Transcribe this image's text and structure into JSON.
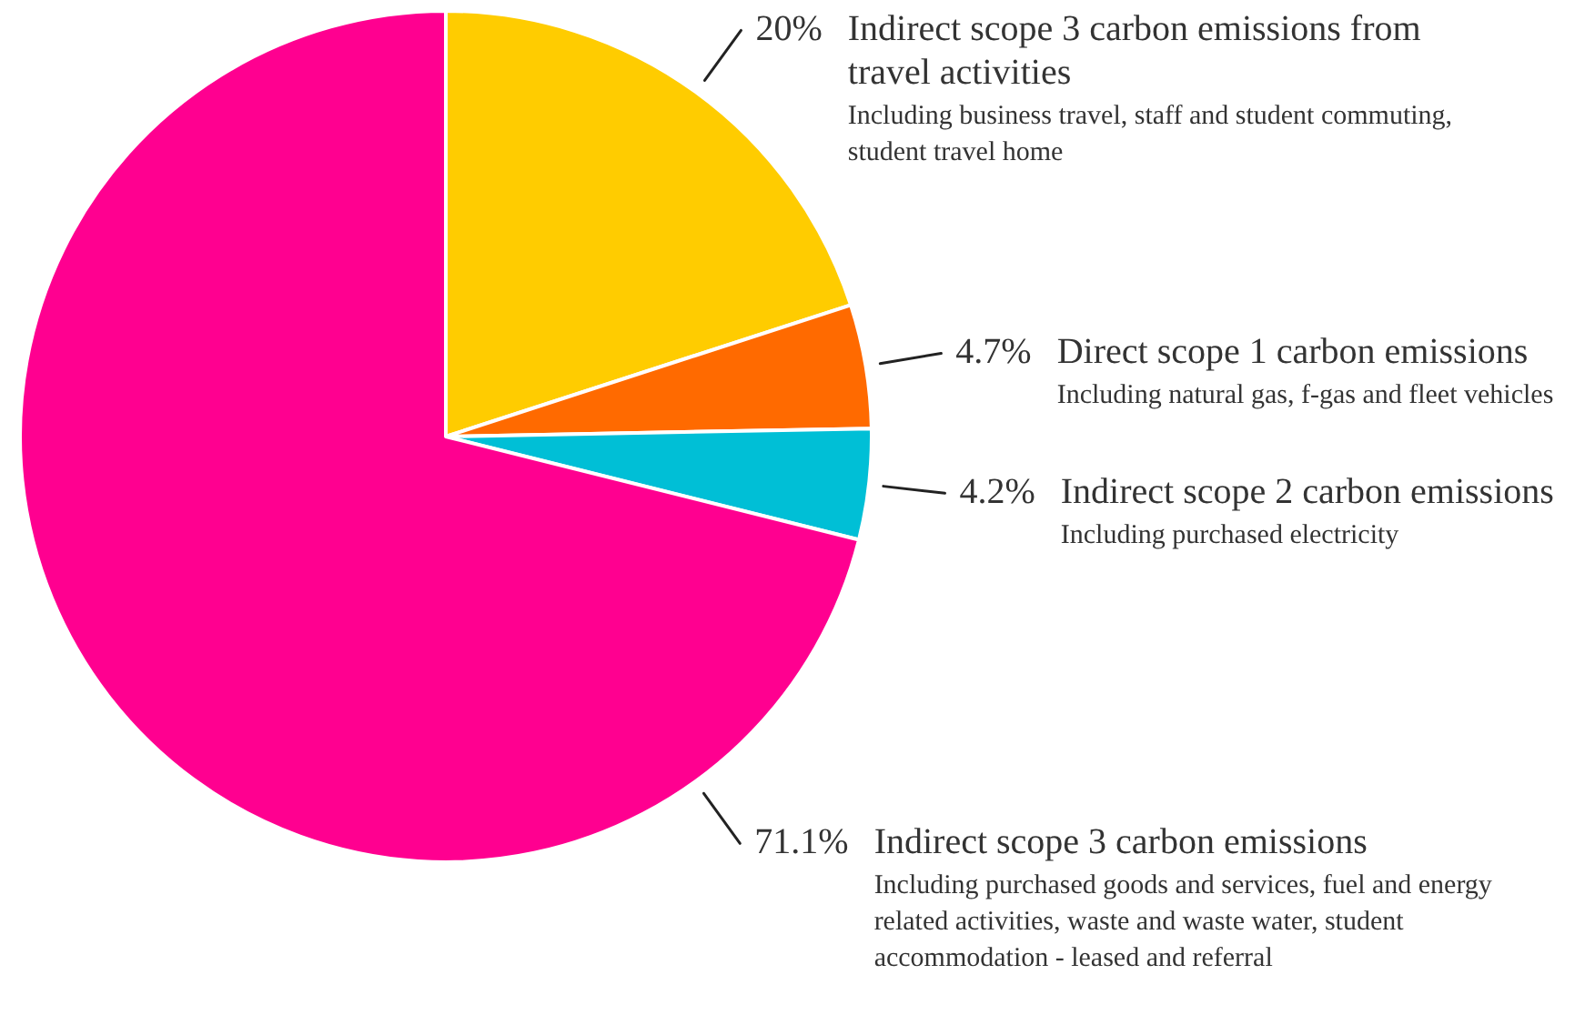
{
  "chart_data": {
    "type": "pie",
    "categories": [
      "Indirect scope 3 carbon emissions from travel activities",
      "Direct scope 1 carbon emissions",
      "Indirect scope 2 carbon emissions",
      "Indirect scope 3 carbon emissions"
    ],
    "values": [
      20,
      4.7,
      4.2,
      71.1
    ],
    "colors": [
      "#ffcc00",
      "#ff6a00",
      "#00bfd6",
      "#ff0090"
    ],
    "value_labels": [
      "20%",
      "4.7%",
      "4.2%",
      "71.1%"
    ],
    "annotations": [
      "Including business travel, staff and student commuting, student travel home",
      "Including natural gas, f-gas and fleet vehicles",
      "Including purchased electricity",
      "Including purchased goods and services, fuel and energy related activities, waste and waste water, student accommodation - leased and referral"
    ]
  }
}
